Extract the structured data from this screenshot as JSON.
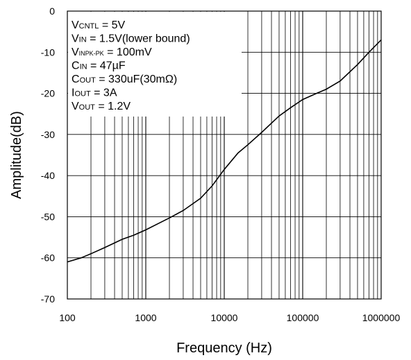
{
  "chart_data": {
    "type": "line",
    "title": "",
    "xlabel": "Frequency (Hz)",
    "ylabel": "Amplitude(dB)",
    "x_scale": "log",
    "xlim": [
      100,
      1000000
    ],
    "ylim": [
      -70,
      0
    ],
    "x_ticks": [
      "100",
      "1000",
      "10000",
      "100000",
      "1000000"
    ],
    "y_ticks": [
      "0",
      "-10",
      "-20",
      "-30",
      "-40",
      "-50",
      "-60",
      "-70"
    ],
    "grid": true,
    "line_color": "#000000",
    "annotations": [
      {
        "main": "V",
        "sub": "CNTL",
        "rest": " = 5V"
      },
      {
        "main": "V",
        "sub": "IN",
        "rest": " = 1.5V(lower bound)"
      },
      {
        "main": "V",
        "sub": "INPK-PK",
        "rest": " = 100mV"
      },
      {
        "main": "C",
        "sub": "IN",
        "rest": " = 47µF"
      },
      {
        "main": "C",
        "sub": "OUT",
        "rest": " = 330uF(30mΩ)"
      },
      {
        "main": "I",
        "sub": "OUT",
        "rest": " = 3A"
      },
      {
        "main": "V",
        "sub": "OUT",
        "rest": " = 1.2V"
      }
    ],
    "series": [
      {
        "x": [
          100,
          150,
          200,
          300,
          500,
          700,
          1000,
          1500,
          2000,
          3000,
          5000,
          7000,
          10000,
          15000,
          20000,
          30000,
          50000,
          70000,
          100000,
          150000,
          200000,
          300000,
          500000,
          700000,
          1000000
        ],
        "values": [
          -61,
          -60,
          -59,
          -57.5,
          -55.5,
          -54.5,
          -53.2,
          -51.5,
          -50.3,
          -48.5,
          -45.5,
          -42.5,
          -38.5,
          -34.5,
          -32.5,
          -29.5,
          -25.5,
          -23.5,
          -21.5,
          -20,
          -19,
          -17,
          -13,
          -10,
          -7
        ]
      }
    ]
  }
}
